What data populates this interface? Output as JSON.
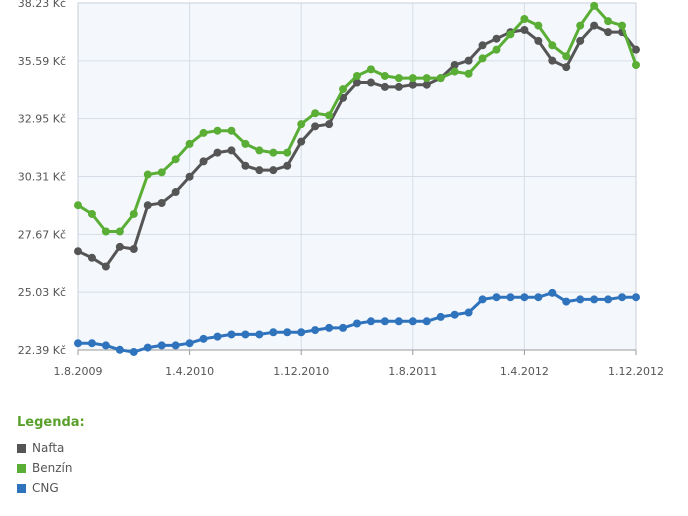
{
  "chart_data": {
    "type": "line",
    "title": "",
    "xlabel": "",
    "ylabel": "",
    "ylim": [
      22.39,
      38.23
    ],
    "yticks": [
      "22.39 Kč",
      "25.03 Kč",
      "27.67 Kč",
      "30.31 Kč",
      "32.95 Kč",
      "35.59 Kč",
      "38.23 Kč"
    ],
    "xticks": [
      "1.8.2009",
      "1.4.2010",
      "1.12.2010",
      "1.8.2011",
      "1.4.2012",
      "1.12.2012"
    ],
    "grid": true,
    "x_start": "2009-08",
    "x_end": "2012-12",
    "series": [
      {
        "name": "Nafta",
        "color": "#555555",
        "values": [
          26.9,
          26.6,
          26.2,
          27.1,
          27.0,
          29.0,
          29.1,
          29.6,
          30.3,
          31.0,
          31.4,
          31.5,
          30.8,
          30.6,
          30.6,
          30.8,
          31.9,
          32.6,
          32.7,
          33.9,
          34.6,
          34.6,
          34.4,
          34.4,
          34.5,
          34.5,
          34.8,
          35.4,
          35.6,
          36.3,
          36.6,
          36.9,
          37.0,
          36.5,
          35.6,
          35.3,
          36.5,
          37.2,
          36.9,
          36.9,
          36.1
        ]
      },
      {
        "name": "Benzín",
        "color": "#5aae35",
        "values": [
          29.0,
          28.6,
          27.8,
          27.8,
          28.6,
          30.4,
          30.5,
          31.1,
          31.8,
          32.3,
          32.4,
          32.4,
          31.8,
          31.5,
          31.4,
          31.4,
          32.7,
          33.2,
          33.1,
          34.3,
          34.9,
          35.2,
          34.9,
          34.8,
          34.8,
          34.8,
          34.8,
          35.1,
          35.0,
          35.7,
          36.1,
          36.8,
          37.5,
          37.2,
          36.3,
          35.8,
          37.2,
          38.1,
          37.4,
          37.2,
          35.4
        ]
      },
      {
        "name": "CNG",
        "color": "#2f73bd",
        "values": [
          22.7,
          22.7,
          22.6,
          22.4,
          22.3,
          22.5,
          22.6,
          22.6,
          22.7,
          22.9,
          23.0,
          23.1,
          23.1,
          23.1,
          23.2,
          23.2,
          23.2,
          23.3,
          23.4,
          23.4,
          23.6,
          23.7,
          23.7,
          23.7,
          23.7,
          23.7,
          23.9,
          24.0,
          24.1,
          24.7,
          24.8,
          24.8,
          24.8,
          24.8,
          25.0,
          24.6,
          24.7,
          24.7,
          24.7,
          24.8,
          24.8
        ]
      }
    ]
  },
  "legend": {
    "title": "Legenda:",
    "items": [
      {
        "label": "Nafta",
        "color": "#555555"
      },
      {
        "label": "Benzín",
        "color": "#5aae35"
      },
      {
        "label": "CNG",
        "color": "#2f73bd"
      }
    ]
  }
}
